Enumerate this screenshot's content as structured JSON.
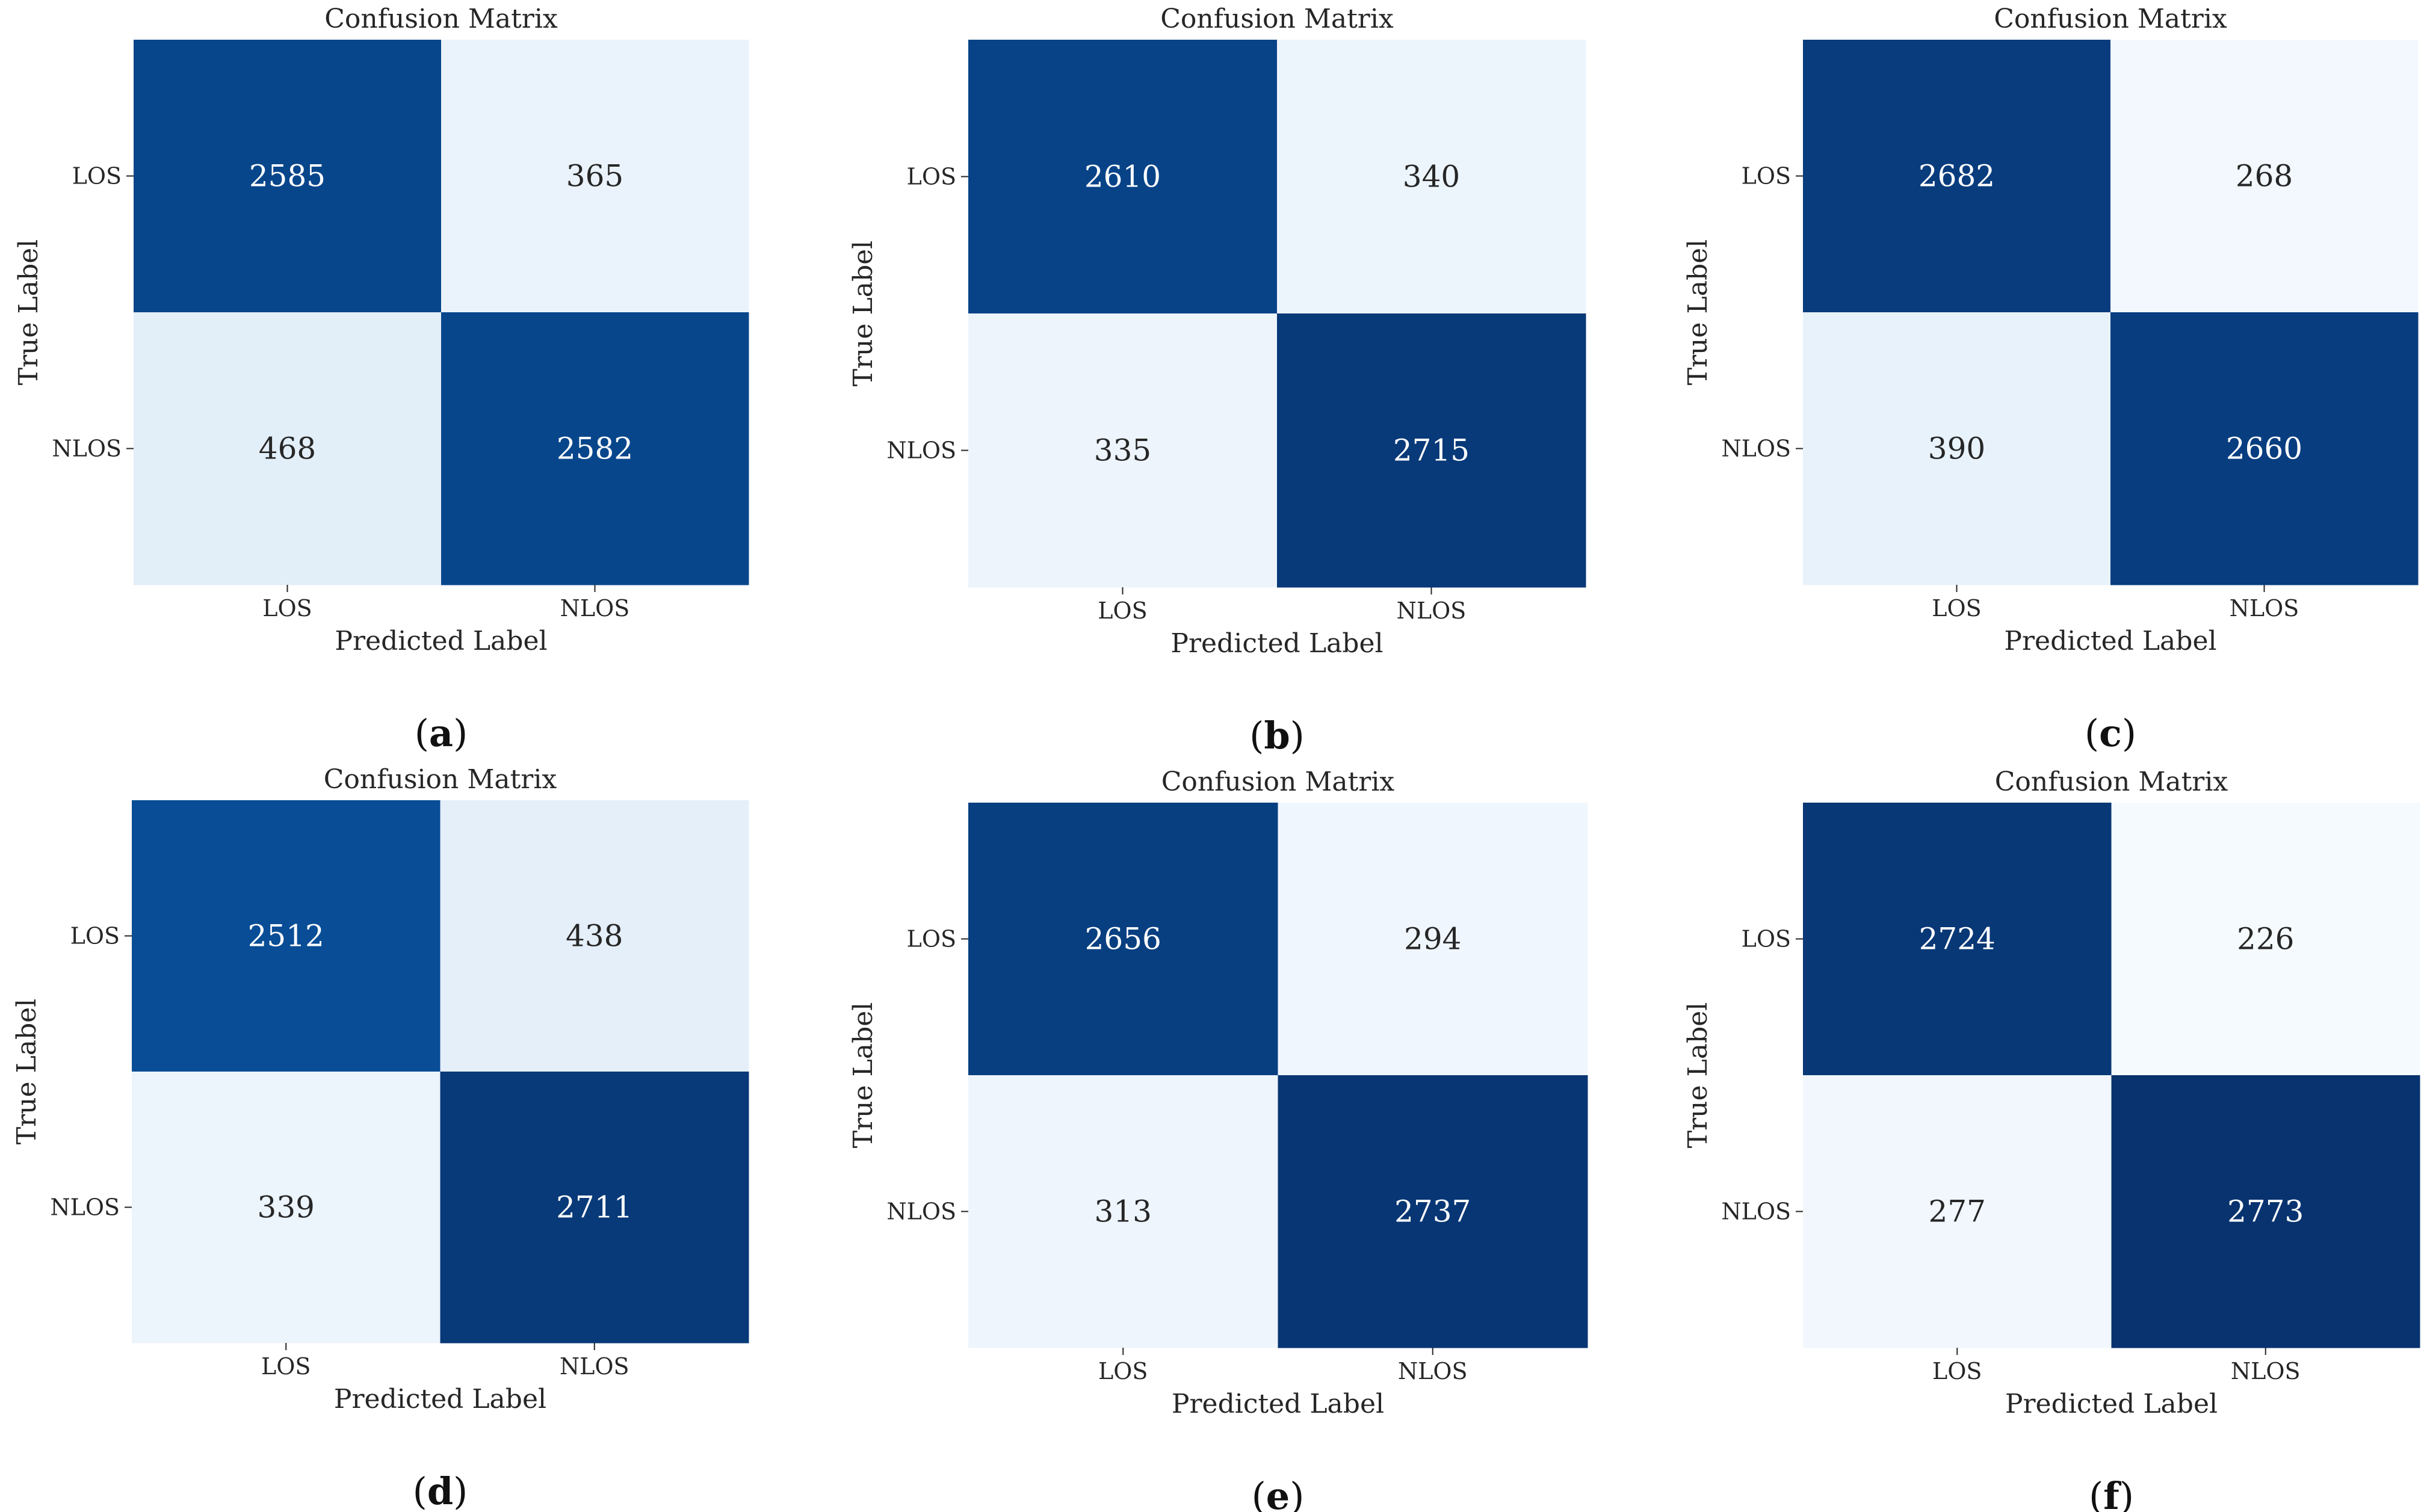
{
  "chart_data": [
    {
      "type": "heatmap",
      "panel_label": "a",
      "title": "Confusion Matrix",
      "xlabel": "Predicted Label",
      "ylabel": "True Label",
      "x_categories": [
        "LOS",
        "NLOS"
      ],
      "y_categories": [
        "LOS",
        "NLOS"
      ],
      "values": [
        [
          2585,
          365
        ],
        [
          468,
          2582
        ]
      ],
      "colormap": "Blues",
      "color_range": [
        200,
        2800
      ],
      "colorbar": false,
      "grid": false
    },
    {
      "type": "heatmap",
      "panel_label": "b",
      "title": "Confusion Matrix",
      "xlabel": "Predicted Label",
      "ylabel": "True Label",
      "x_categories": [
        "LOS",
        "NLOS"
      ],
      "y_categories": [
        "LOS",
        "NLOS"
      ],
      "values": [
        [
          2610,
          340
        ],
        [
          335,
          2715
        ]
      ],
      "colormap": "Blues",
      "color_range": [
        200,
        2800
      ],
      "colorbar": false,
      "grid": false
    },
    {
      "type": "heatmap",
      "panel_label": "c",
      "title": "Confusion Matrix",
      "xlabel": "Predicted Label",
      "ylabel": "True Label",
      "x_categories": [
        "LOS",
        "NLOS"
      ],
      "y_categories": [
        "LOS",
        "NLOS"
      ],
      "values": [
        [
          2682,
          268
        ],
        [
          390,
          2660
        ]
      ],
      "colormap": "Blues",
      "color_range": [
        200,
        2800
      ],
      "colorbar": false,
      "grid": false
    },
    {
      "type": "heatmap",
      "panel_label": "d",
      "title": "Confusion Matrix",
      "xlabel": "Predicted Label",
      "ylabel": "True Label",
      "x_categories": [
        "LOS",
        "NLOS"
      ],
      "y_categories": [
        "LOS",
        "NLOS"
      ],
      "values": [
        [
          2512,
          438
        ],
        [
          339,
          2711
        ]
      ],
      "colormap": "Blues",
      "color_range": [
        200,
        2800
      ],
      "colorbar": false,
      "grid": false
    },
    {
      "type": "heatmap",
      "panel_label": "e",
      "title": "Confusion Matrix",
      "xlabel": "Predicted Label",
      "ylabel": "True Label",
      "x_categories": [
        "LOS",
        "NLOS"
      ],
      "y_categories": [
        "LOS",
        "NLOS"
      ],
      "values": [
        [
          2656,
          294
        ],
        [
          313,
          2737
        ]
      ],
      "colormap": "Blues",
      "color_range": [
        200,
        2800
      ],
      "colorbar": false,
      "grid": false
    },
    {
      "type": "heatmap",
      "panel_label": "f",
      "title": "Confusion Matrix",
      "xlabel": "Predicted Label",
      "ylabel": "True Label",
      "x_categories": [
        "LOS",
        "NLOS"
      ],
      "y_categories": [
        "LOS",
        "NLOS"
      ],
      "values": [
        [
          2724,
          226
        ],
        [
          277,
          2773
        ]
      ],
      "colormap": "Blues",
      "color_range": [
        200,
        2800
      ],
      "colorbar": false,
      "grid": false
    }
  ],
  "colors": {
    "low": "#f7fbff",
    "mid_light": "#deebf7",
    "mid": "#6baed6",
    "mid_dark": "#2171b5",
    "high": "#08306b",
    "text_on_dark": "#ffffff",
    "text_on_light": "#262626",
    "axis_text": "#262626"
  }
}
